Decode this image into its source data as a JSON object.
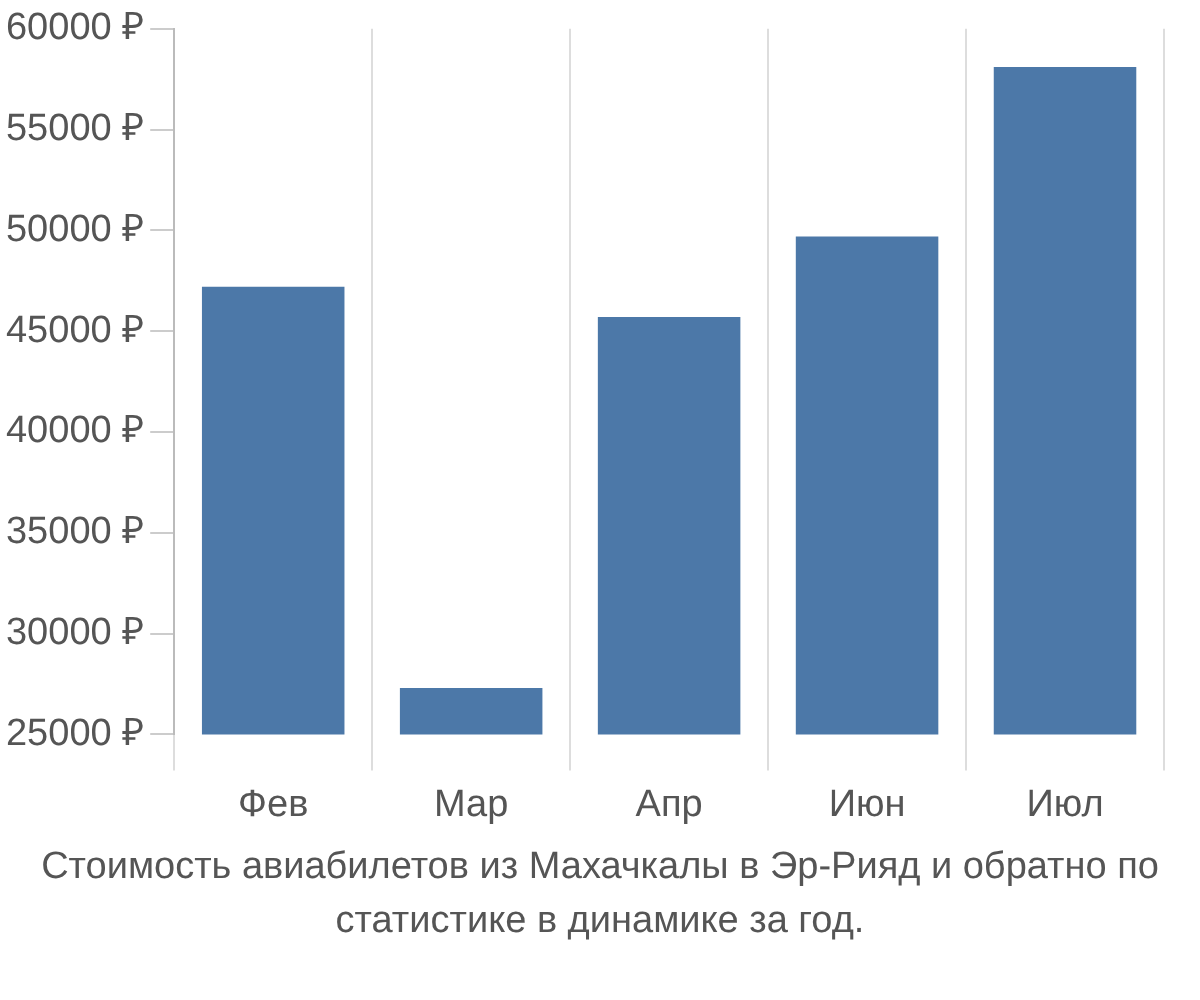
{
  "chart_data": {
    "type": "bar",
    "title": "Стоимость авиабилетов из Махачкалы в Эр-Рияд и обратно по статистике в динамике за год.",
    "categories": [
      "Фев",
      "Мар",
      "Апр",
      "Июн",
      "Июл"
    ],
    "values": [
      47200,
      27300,
      45700,
      49700,
      58100
    ],
    "color": "#4c78a8",
    "ylim": [
      25000,
      60000
    ],
    "yticks": [
      {
        "value": 25000,
        "label": "25000 ₽"
      },
      {
        "value": 30000,
        "label": "30000 ₽"
      },
      {
        "value": 35000,
        "label": "35000 ₽"
      },
      {
        "value": 40000,
        "label": "40000 ₽"
      },
      {
        "value": 45000,
        "label": "45000 ₽"
      },
      {
        "value": 50000,
        "label": "50000 ₽"
      },
      {
        "value": 55000,
        "label": "55000 ₽"
      },
      {
        "value": 60000,
        "label": "60000 ₽"
      }
    ],
    "grid": "x"
  }
}
